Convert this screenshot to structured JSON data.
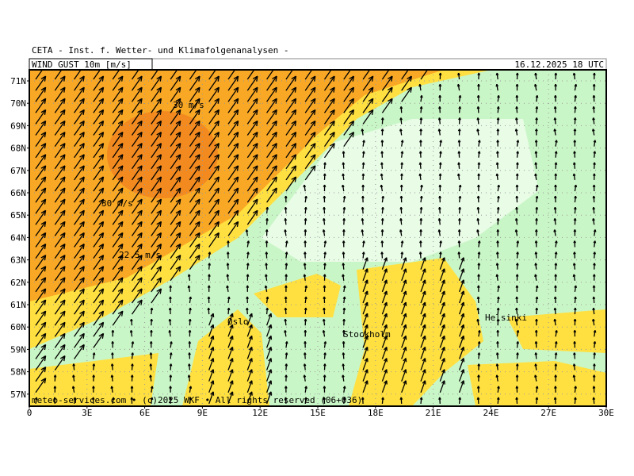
{
  "header": {
    "institute": "CETA - Inst. f. Wetter- und Klimafolgenanalysen -",
    "field": "WIND GUST 10m [m/s]",
    "valid_time": "16.12.2025 18 UTC"
  },
  "lat_labels": [
    "71N",
    "70N",
    "69N",
    "68N",
    "67N",
    "66N",
    "65N",
    "64N",
    "63N",
    "62N",
    "61N",
    "60N",
    "59N",
    "58N",
    "57N"
  ],
  "lon_labels": [
    "0",
    "3E",
    "6E",
    "9E",
    "12E",
    "15E",
    "18E",
    "21E",
    "24E",
    "27E",
    "30E"
  ],
  "contour_labels": [
    "30 m/s",
    "30 m/s",
    "22.5 m/s"
  ],
  "cities": [
    "Oslo",
    "Stockholm",
    "Helsinki"
  ],
  "footer": "meteo-services.com • (c)2025 WKF • All rights reserved (06+036)"
}
